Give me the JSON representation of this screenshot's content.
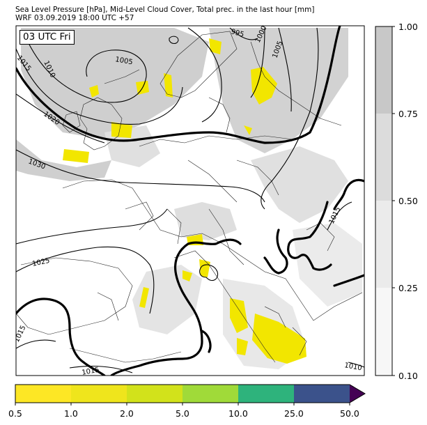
{
  "header": {
    "title_line1": "Sea Level Pressure [hPa], Mid-Level Cloud Cover, Total prec. in the last hour [mm]",
    "title_line2": "WRF 03.09.2019 18:00 UTC +57"
  },
  "map": {
    "time_badge": "03 UTC Fri",
    "isobar_labels": [
      "995",
      "1000",
      "1005",
      "1005",
      "1010",
      "1015",
      "1020",
      "1030",
      "1025",
      "1015",
      "1015",
      "1015",
      "1010"
    ]
  },
  "cloud_colorbar": {
    "ticks": [
      "1.00",
      "0.75",
      "0.50",
      "0.25",
      "0.10"
    ],
    "colors": [
      "#c8c8c8",
      "#dcdcdc",
      "#ebebeb",
      "#f7f7f7"
    ]
  },
  "precip_colorbar": {
    "ticks": [
      "0.5",
      "1.0",
      "2.0",
      "5.0",
      "10.0",
      "25.0",
      "50.0"
    ],
    "colors": [
      "#fde725",
      "#efe51c",
      "#d2e21b",
      "#a0da39",
      "#2eb37c",
      "#3b528b",
      "#440154"
    ]
  }
}
